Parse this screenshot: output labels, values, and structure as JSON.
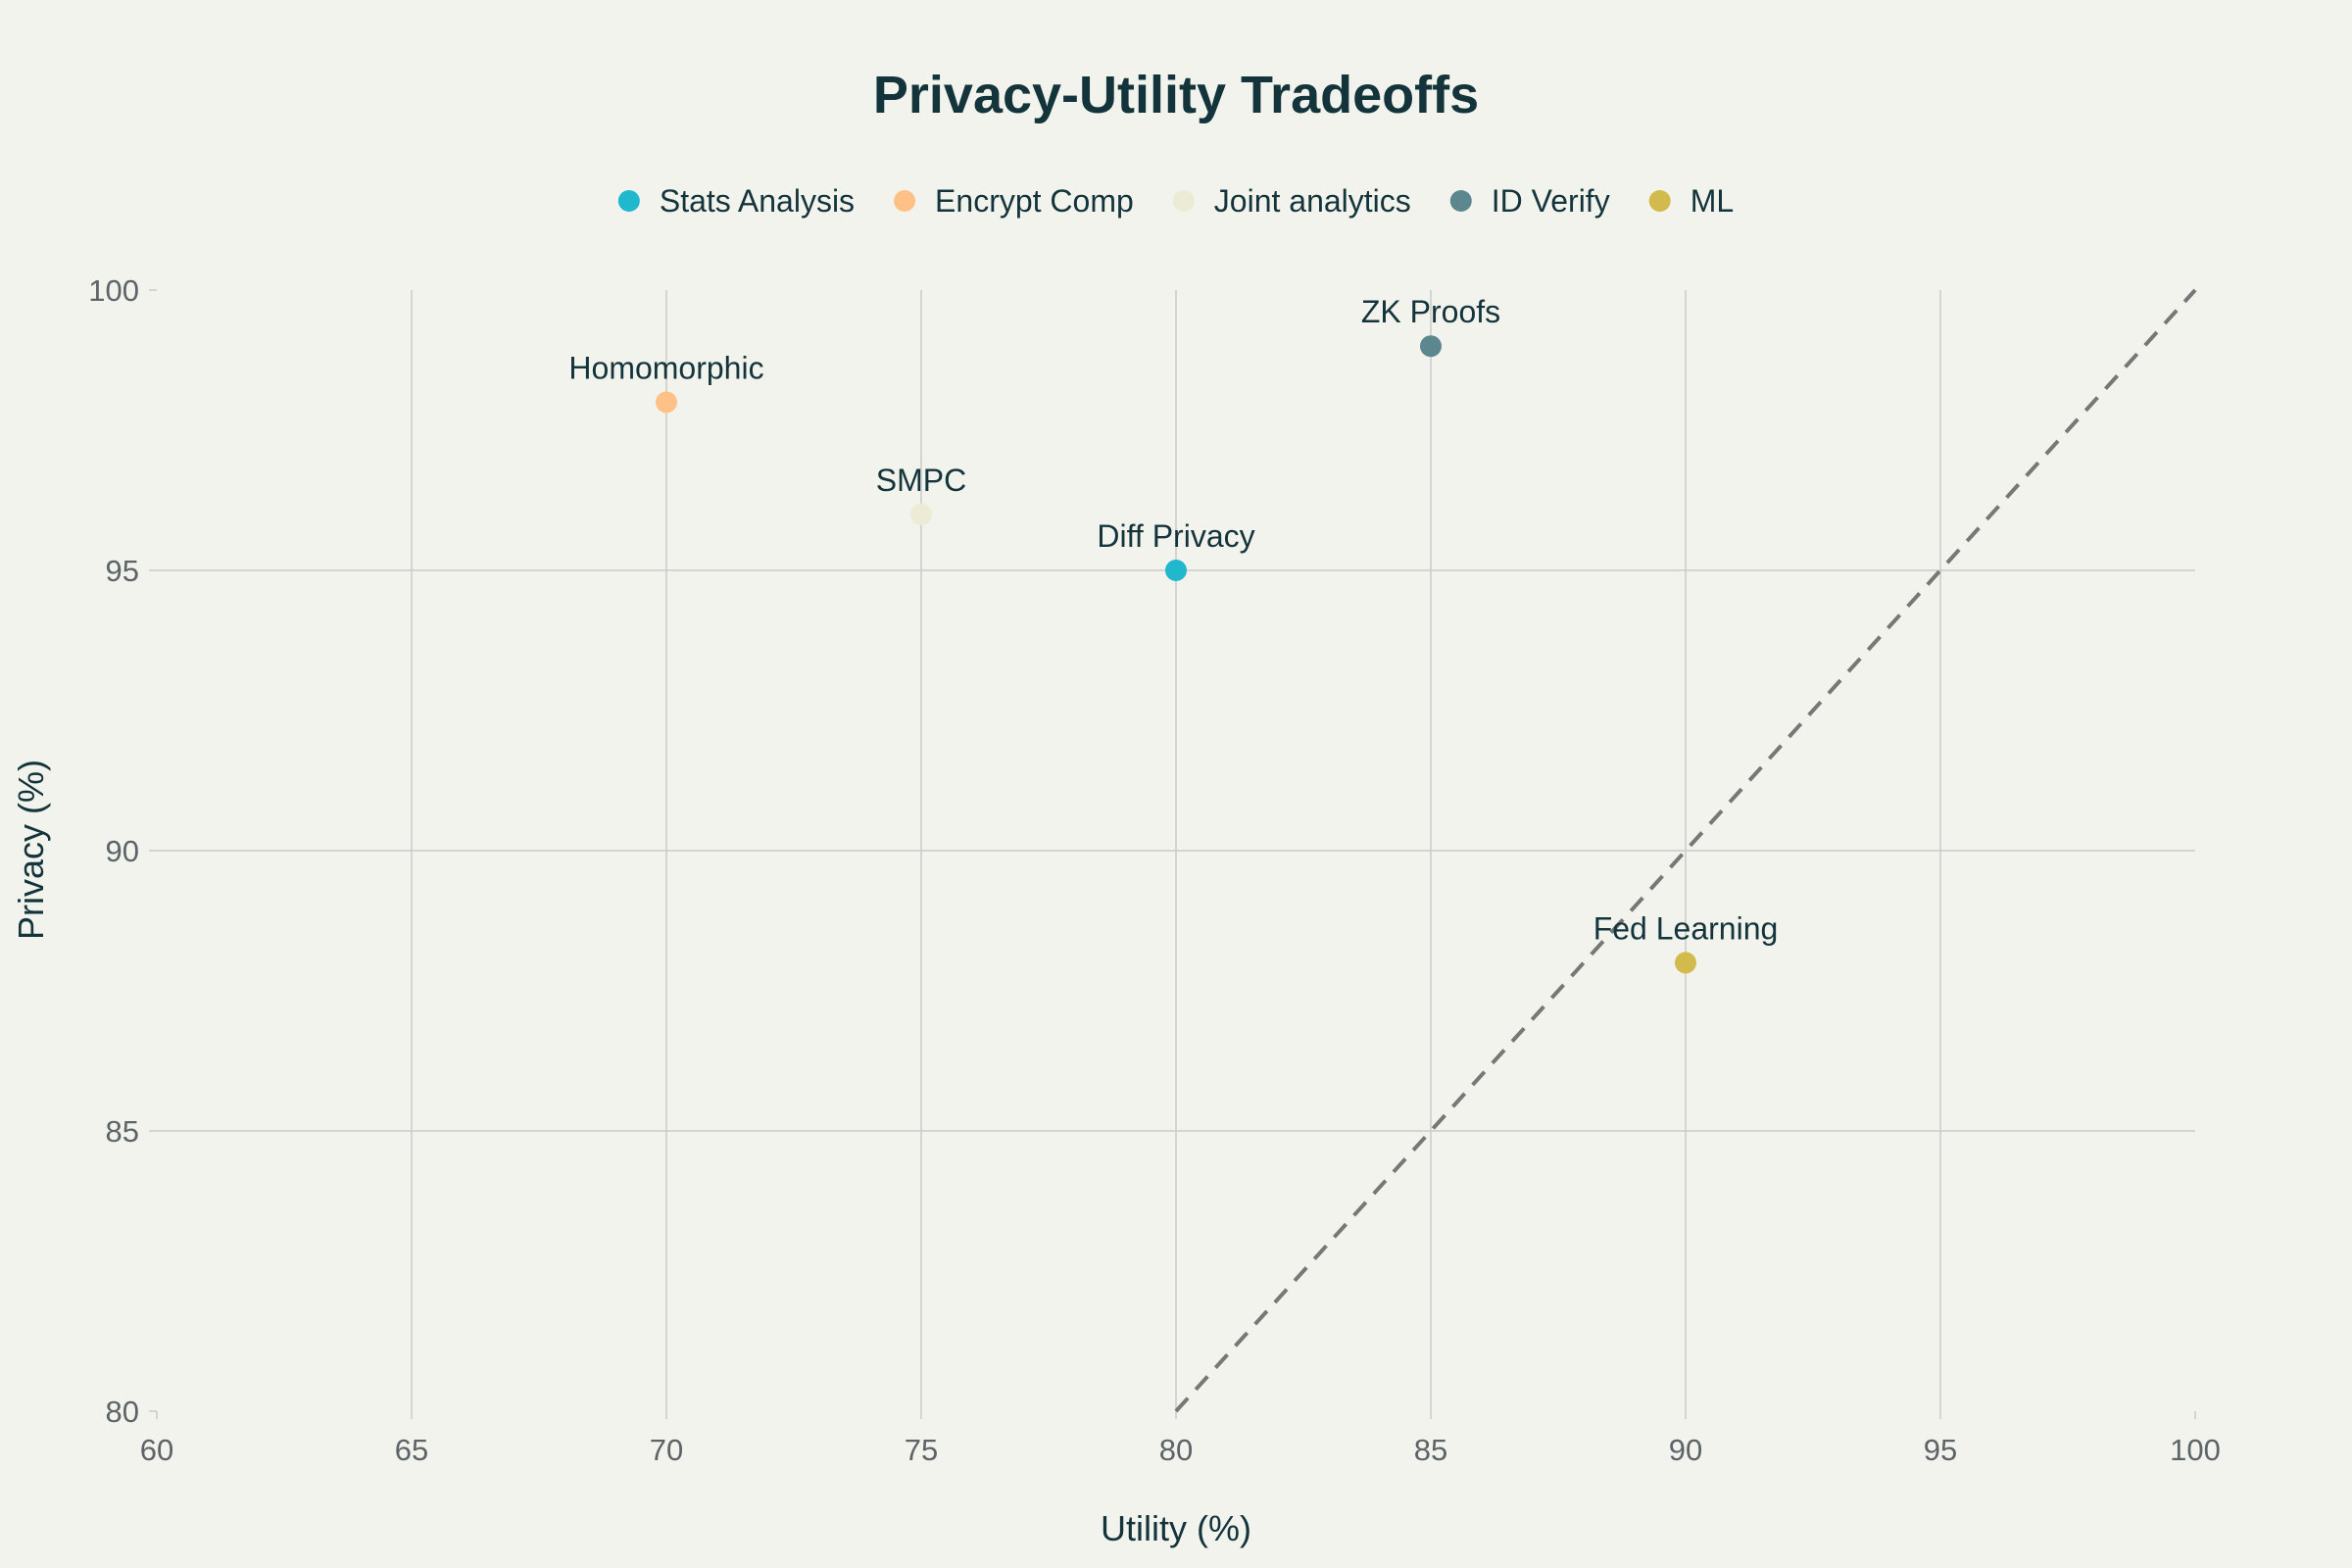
{
  "chart_data": {
    "type": "scatter",
    "title": "Privacy-Utility Tradeoffs",
    "xlabel": "Utility (%)",
    "ylabel": "Privacy (%)",
    "xlim": [
      60,
      100
    ],
    "ylim": [
      80,
      100
    ],
    "x_ticks": [
      60,
      65,
      70,
      75,
      80,
      85,
      90,
      95,
      100
    ],
    "y_ticks": [
      80,
      85,
      90,
      95,
      100
    ],
    "grid": true,
    "legend_position": "top-center",
    "series": [
      {
        "name": "Stats Analysis",
        "color": "#1fb8cd",
        "points": [
          {
            "x": 80,
            "y": 95,
            "label": "Diff Privacy"
          }
        ]
      },
      {
        "name": "Encrypt Comp",
        "color": "#ffc185",
        "points": [
          {
            "x": 70,
            "y": 98,
            "label": "Homomorphic"
          }
        ]
      },
      {
        "name": "Joint analytics",
        "color": "#ecebd5",
        "points": [
          {
            "x": 75,
            "y": 96,
            "label": "SMPC"
          }
        ]
      },
      {
        "name": "ID Verify",
        "color": "#5d878f",
        "points": [
          {
            "x": 85,
            "y": 99,
            "label": "ZK Proofs"
          }
        ]
      },
      {
        "name": "ML",
        "color": "#d2ba4c",
        "points": [
          {
            "x": 90,
            "y": 88,
            "label": "Fed Learning"
          }
        ]
      }
    ],
    "reference_line": {
      "style": "dashed",
      "color": "#777777",
      "x": [
        80,
        100
      ],
      "y": [
        80,
        100
      ]
    }
  }
}
